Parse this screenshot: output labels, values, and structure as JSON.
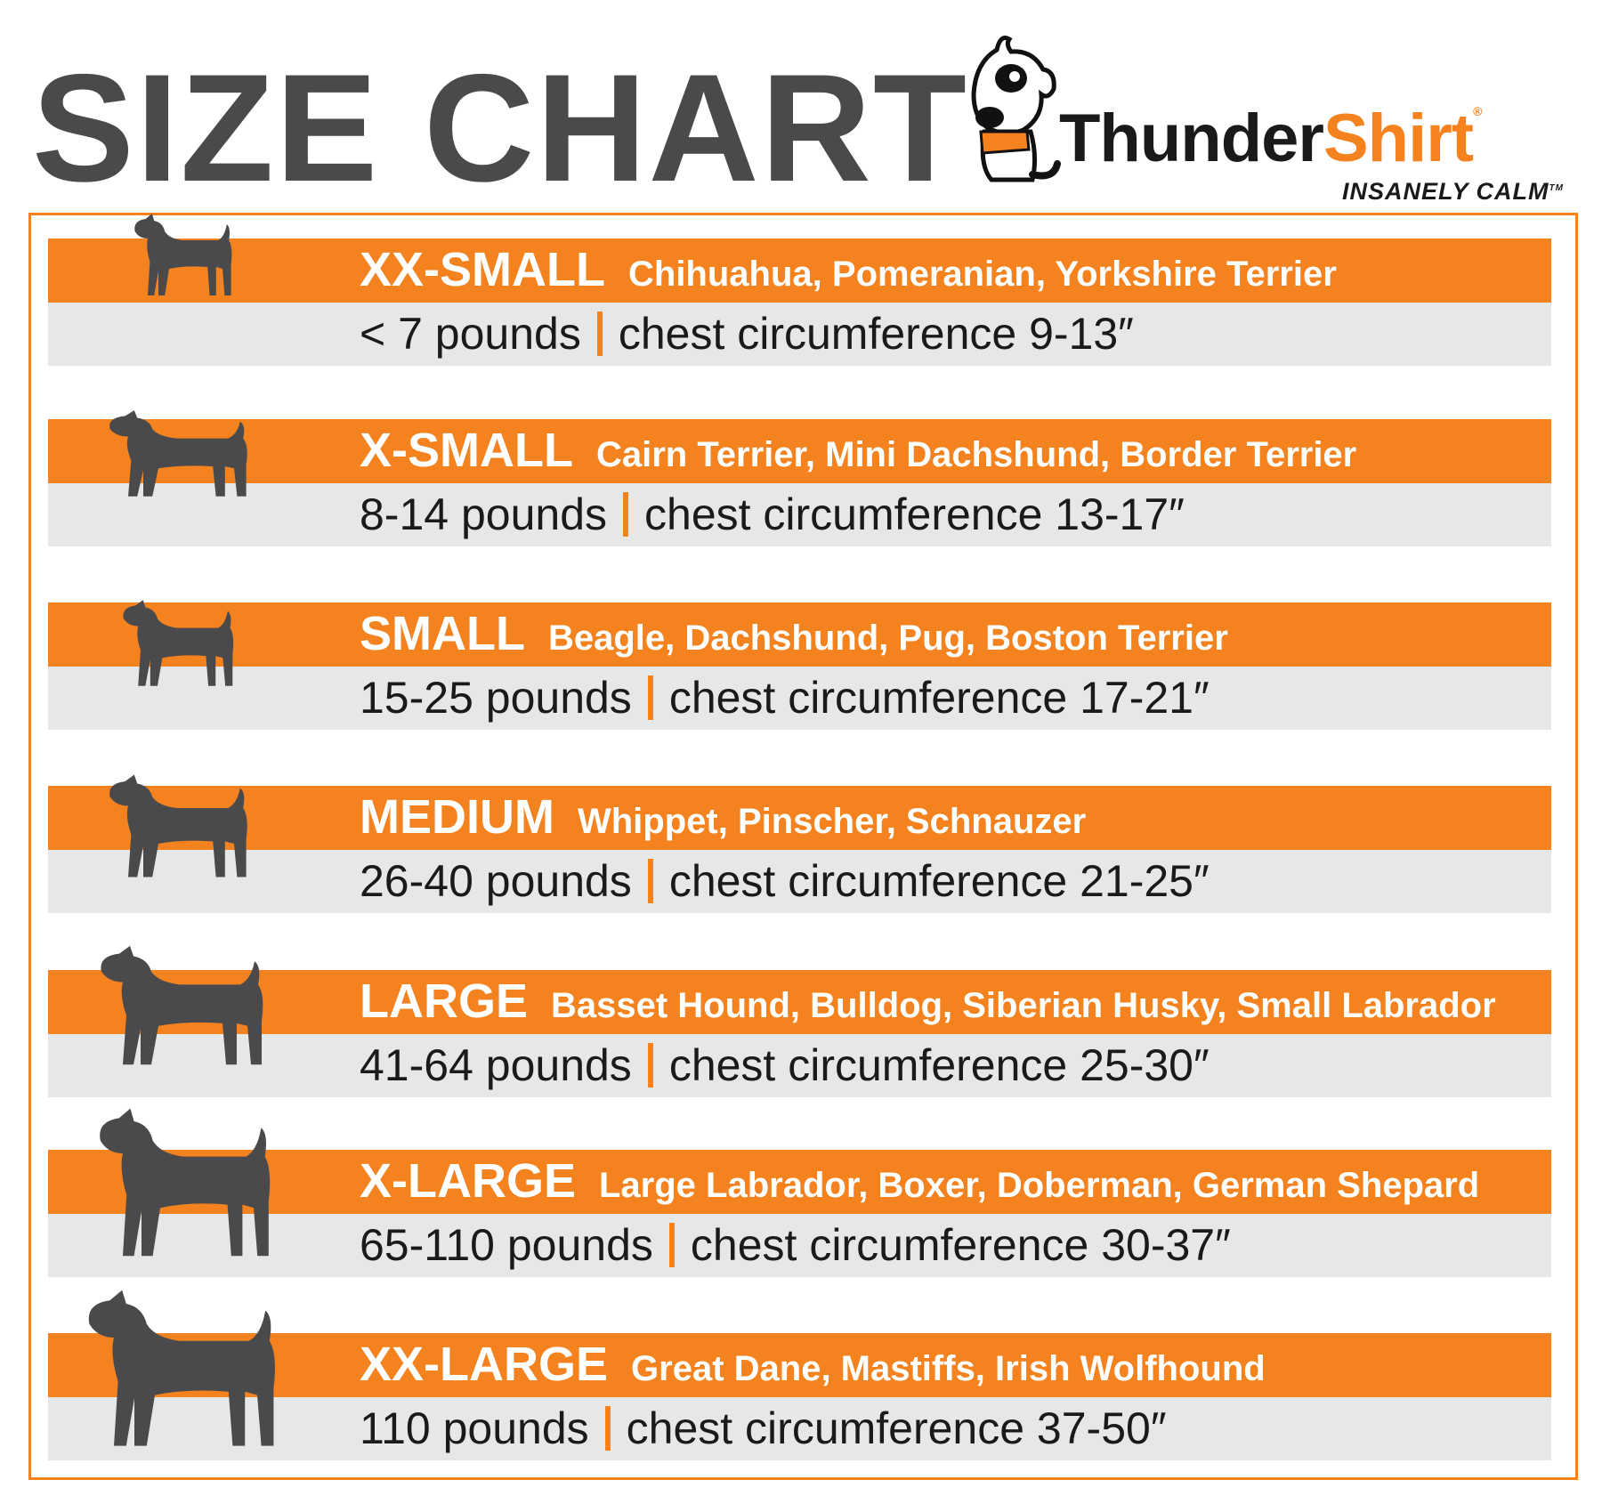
{
  "title": "SIZE CHART",
  "brand": {
    "name_part1": "Thunder",
    "name_part2": "Shirt",
    "registered": "®",
    "tagline": "INSANELY CALM",
    "trademark": "TM"
  },
  "colors": {
    "accent": "#f3821f",
    "band_gray": "#e6e7e7",
    "silhouette": "#4a4a4c",
    "title": "#4a4a4c"
  },
  "sizes": [
    {
      "label": "XX-SMALL",
      "breeds": "Chihuahua, Pomeranian, Yorkshire Terrier",
      "weight": "< 7 pounds",
      "chest": "chest circumference 9-13″",
      "icon": "chihuahua-silhouette-icon"
    },
    {
      "label": "X-SMALL",
      "breeds": "Cairn Terrier, Mini Dachshund, Border Terrier",
      "weight": "8-14 pounds",
      "chest": "chest circumference 13-17″",
      "icon": "dachshund-silhouette-icon"
    },
    {
      "label": "SMALL",
      "breeds": "Beagle, Dachshund, Pug, Boston Terrier",
      "weight": "15-25 pounds",
      "chest": "chest circumference 17-21″",
      "icon": "pug-silhouette-icon"
    },
    {
      "label": "MEDIUM",
      "breeds": "Whippet, Pinscher, Schnauzer",
      "weight": "26-40 pounds",
      "chest": "chest circumference 21-25″",
      "icon": "terrier-silhouette-icon"
    },
    {
      "label": "LARGE",
      "breeds": "Basset Hound, Bulldog, Siberian Husky, Small Labrador",
      "weight": "41-64 pounds",
      "chest": "chest circumference 25-30″",
      "icon": "hound-silhouette-icon"
    },
    {
      "label": "X-LARGE",
      "breeds": "Large Labrador, Boxer, Doberman, German Shepard",
      "weight": "65-110 pounds",
      "chest": "chest circumference 30-37″",
      "icon": "boxer-silhouette-icon"
    },
    {
      "label": "XX-LARGE",
      "breeds": "Great Dane, Mastiffs, Irish Wolfhound",
      "weight": "110 pounds",
      "chest": "chest circumference 37-50″",
      "icon": "mastiff-silhouette-icon"
    }
  ]
}
